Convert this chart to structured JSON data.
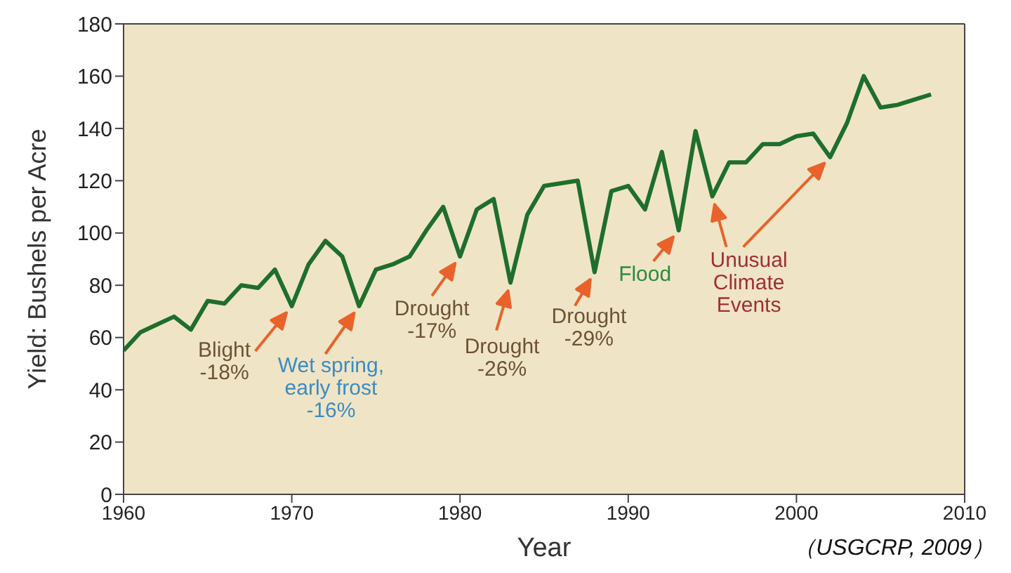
{
  "chart_data": {
    "type": "line",
    "xlabel": "Year",
    "ylabel": "Yield: Bushels per Acre",
    "x": [
      1960,
      1961,
      1962,
      1963,
      1964,
      1965,
      1966,
      1967,
      1968,
      1969,
      1970,
      1971,
      1972,
      1973,
      1974,
      1975,
      1976,
      1977,
      1978,
      1979,
      1980,
      1981,
      1982,
      1983,
      1984,
      1985,
      1986,
      1987,
      1988,
      1989,
      1990,
      1991,
      1992,
      1993,
      1994,
      1995,
      1996,
      1997,
      1998,
      1999,
      2000,
      2001,
      2002,
      2003,
      2004,
      2005,
      2006,
      2007,
      2008
    ],
    "series": [
      {
        "color": "#1f6e2c",
        "values": [
          55,
          62,
          65,
          68,
          63,
          74,
          73,
          80,
          79,
          86,
          72,
          88,
          97,
          91,
          72,
          86,
          88,
          91,
          101,
          110,
          91,
          109,
          113,
          81,
          107,
          118,
          119,
          120,
          85,
          116,
          118,
          109,
          131,
          101,
          139,
          114,
          127,
          127,
          134,
          134,
          137,
          138,
          129,
          142,
          160,
          148,
          149,
          151,
          153
        ]
      }
    ],
    "xlim": [
      1960,
      2010
    ],
    "xticks": [
      1960,
      1970,
      1980,
      1990,
      2000,
      2010
    ],
    "ylim": [
      0,
      180
    ],
    "yticks": [
      0,
      20,
      40,
      60,
      80,
      100,
      120,
      140,
      160,
      180
    ],
    "grid": false,
    "legend": false,
    "marker": "none",
    "line_style": "solid",
    "annotations": [
      {
        "text": "Blight\n-18%",
        "x": 1970,
        "y": 72
      },
      {
        "text": "Wet spring,\nearly frost\n-16%",
        "x": 1974,
        "y": 72
      },
      {
        "text": "Drought\n-17%",
        "x": 1980,
        "y": 91
      },
      {
        "text": "Drought\n-26%",
        "x": 1983,
        "y": 81
      },
      {
        "text": "Drought\n-29%",
        "x": 1988,
        "y": 85
      },
      {
        "text": "Flood",
        "x": 1993,
        "y": 101
      },
      {
        "text": "Unusual\nClimate\nEvents",
        "x": 1995,
        "y": 114
      },
      "（USGCRP, 2009）"
    ]
  }
}
